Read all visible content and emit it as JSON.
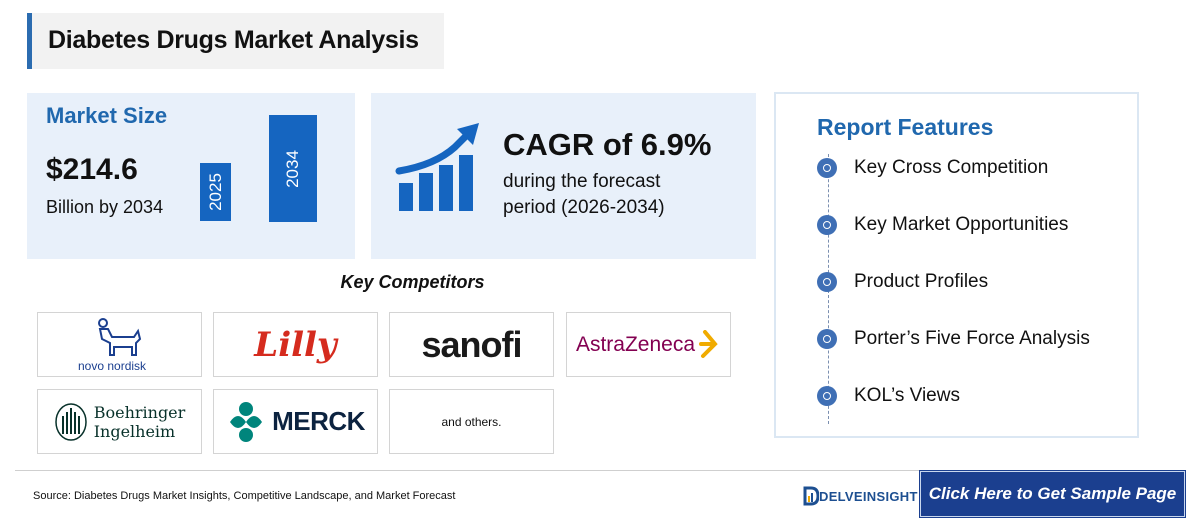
{
  "page_title": "Diabetes Drugs Market Analysis",
  "market": {
    "title": "Market Size",
    "value": "$214.6",
    "subtitle": "Billion by 2034",
    "bars": [
      "2025",
      "2034"
    ]
  },
  "cagr": {
    "headline": "CAGR of 6.9%",
    "line1": "during the forecast",
    "line2": "period (2026-2034)",
    "icon": "growth-chart-icon"
  },
  "competitors": {
    "title": "Key Competitors",
    "logos": [
      "novo nordisk",
      "Lilly",
      "sanofi",
      "AstraZeneca",
      "Boehringer",
      "Ingelheim",
      "MERCK"
    ],
    "others": "and others."
  },
  "features": {
    "title": "Report Features",
    "items": [
      "Key Cross Competition",
      "Key Market Opportunities",
      "Product Profiles",
      "Porter’s Five Force Analysis",
      "KOL’s Views"
    ]
  },
  "footer": {
    "source": "Source: Diabetes Drugs Market Insights, Competitive Landscape, and Market Forecast",
    "brand": "DELVEINSIGHT",
    "cta": "Click Here to Get Sample Page"
  },
  "colors": {
    "accent": "#2068ae",
    "bar": "#1565c0",
    "card_bg": "#e8f0fa",
    "cta_bg": "#1b3f8f"
  }
}
